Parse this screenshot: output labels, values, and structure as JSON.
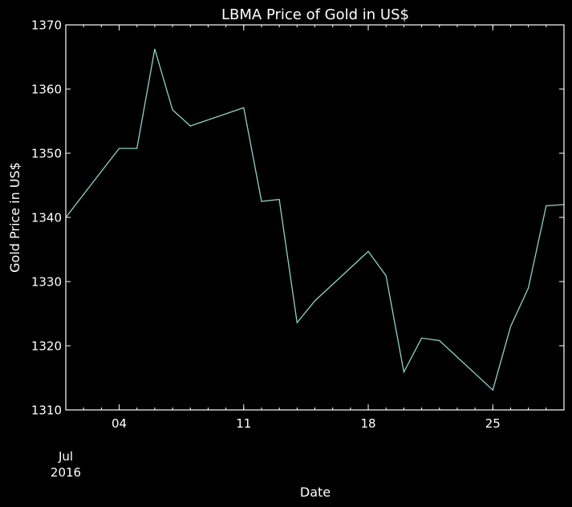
{
  "chart_data": {
    "type": "line",
    "title": "LBMA Price of Gold in US$",
    "xlabel": "Date",
    "ylabel": "Gold Price in US$",
    "ylim": [
      1310,
      1370
    ],
    "xlim": [
      "2016-07-01",
      "2016-07-29"
    ],
    "y_ticks": [
      "1310",
      "1320",
      "1330",
      "1340",
      "1350",
      "1360",
      "1370"
    ],
    "x_ticks": [
      {
        "date": "2016-07-04",
        "label": "04"
      },
      {
        "date": "2016-07-11",
        "label": "11"
      },
      {
        "date": "2016-07-18",
        "label": "18"
      },
      {
        "date": "2016-07-25",
        "label": "25"
      }
    ],
    "x_offset_label": [
      "Jul",
      "2016"
    ],
    "grid": false,
    "colors": {
      "background": "#000000",
      "line": "#8dd3c7",
      "text": "#ffffff",
      "axes": "#ffffff"
    },
    "series": [
      {
        "x": [
          "2016-07-01",
          "2016-07-04",
          "2016-07-05",
          "2016-07-06",
          "2016-07-07",
          "2016-07-08",
          "2016-07-11",
          "2016-07-12",
          "2016-07-13",
          "2016-07-14",
          "2016-07-15",
          "2016-07-18",
          "2016-07-19",
          "2016-07-20",
          "2016-07-21",
          "2016-07-22",
          "2016-07-25",
          "2016-07-26",
          "2016-07-27",
          "2016-07-28",
          "2016-07-29"
        ],
        "values": [
          1340.0,
          1350.75,
          1350.75,
          1366.25,
          1356.75,
          1354.25,
          1357.1,
          1342.5,
          1342.8,
          1323.6,
          1327.0,
          1334.7,
          1330.9,
          1315.9,
          1321.2,
          1320.8,
          1313.1,
          1323.0,
          1329.0,
          1341.8,
          1342.0
        ]
      }
    ]
  }
}
